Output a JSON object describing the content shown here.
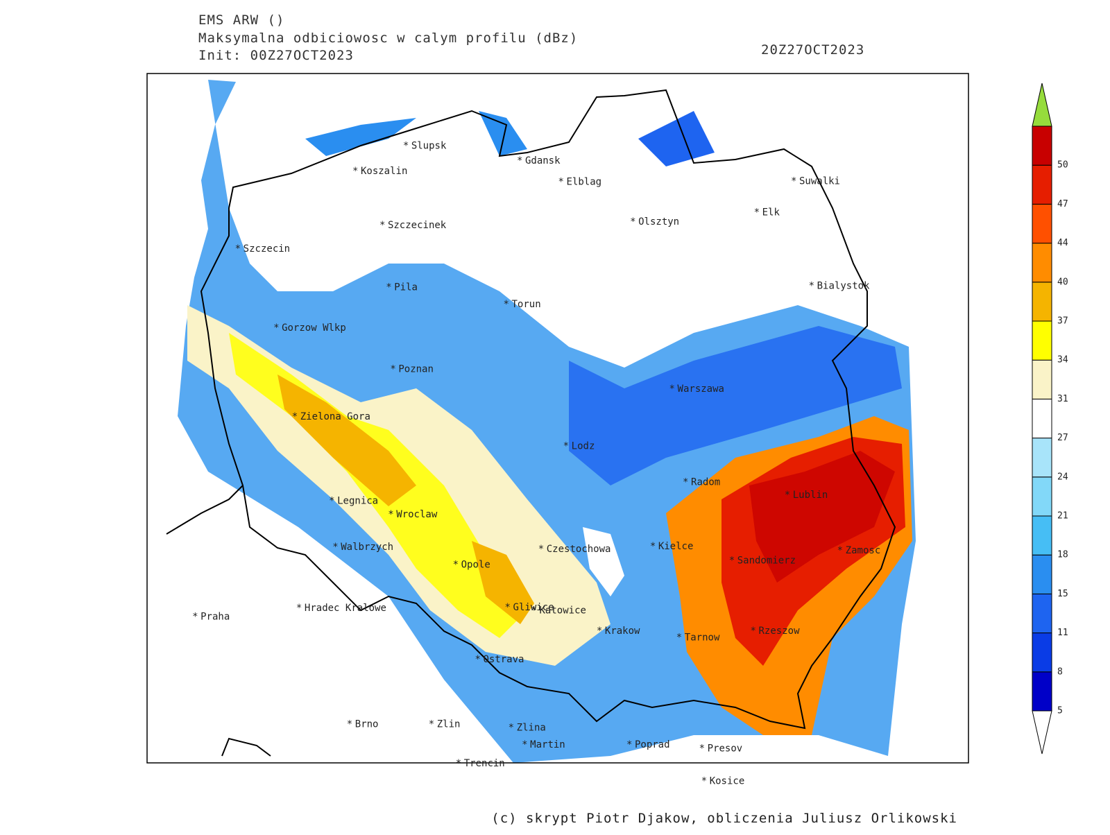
{
  "header": {
    "model": "EMS ARW ()",
    "field": "Maksymalna odbiciowosc w calym profilu (dBz)",
    "init": "Init: 00Z27OCT2023",
    "valid": "20Z27OCT2023"
  },
  "map": {
    "cities": [
      "Slupsk",
      "Koszalin",
      "Gdansk",
      "Elblag",
      "Suwalki",
      "Elk",
      "Olsztyn",
      "Szczecinek",
      "Szczecin",
      "Bialystok",
      "Pila",
      "Torun",
      "Gorzow Wlkp",
      "Poznan",
      "Warszawa",
      "Zielona Gora",
      "Lodz",
      "Radom",
      "Lublin",
      "Legnica",
      "Wroclaw",
      "Walbrzych",
      "Czestochowa",
      "Kielce",
      "Zamosc",
      "Opole",
      "Sandomierz",
      "Gliwice",
      "Katowice",
      "Hradec Kralowe",
      "Praha",
      "Krakow",
      "Tarnow",
      "Rzeszow",
      "Ostrava",
      "Brno",
      "Zlin",
      "Zlina",
      "Martin",
      "Poprad",
      "Presov",
      "Trencin",
      "Kosice"
    ]
  },
  "legend": {
    "levels": [
      5,
      8,
      11,
      15,
      18,
      21,
      24,
      27,
      31,
      34,
      37,
      40,
      44,
      47,
      50
    ],
    "colors": [
      "#0000c8",
      "#0a3ce6",
      "#1e64f0",
      "#2a8ef0",
      "#46bef5",
      "#82d8f8",
      "#a8e4fa",
      "#ffffff",
      "#faf3c8",
      "#ffff00",
      "#f5b400",
      "#ff8c00",
      "#ff5000",
      "#e61e00",
      "#c80000"
    ],
    "above_color": "#96dc3c",
    "below_color": "#ffffff"
  },
  "footer": "(c) skrypt Piotr Djakow, obliczenia Juliusz Orlikowski"
}
